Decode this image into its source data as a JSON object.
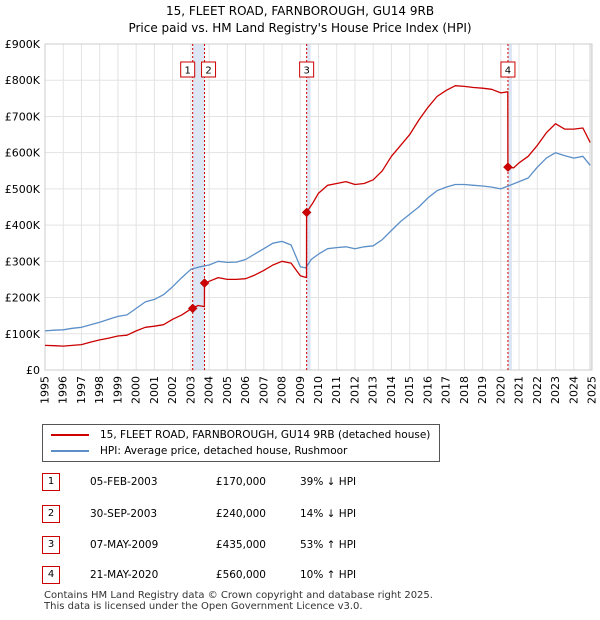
{
  "title_line1": "15, FLEET ROAD, FARNBOROUGH, GU14 9RB",
  "title_line2": "Price paid vs. HM Land Registry's House Price Index (HPI)",
  "colors": {
    "price": "#cc0000",
    "hpi": "#5b8fc8",
    "band": "#dde6f4",
    "vline": "#cc0000"
  },
  "chart_data": {
    "type": "line",
    "xlim": [
      1995,
      2025
    ],
    "ylim": [
      0,
      900000
    ],
    "y_ticks": [
      0,
      100000,
      200000,
      300000,
      400000,
      500000,
      600000,
      700000,
      800000,
      900000
    ],
    "y_tick_labels": [
      "£0",
      "£100K",
      "£200K",
      "£300K",
      "£400K",
      "£500K",
      "£600K",
      "£700K",
      "£800K",
      "£900K"
    ],
    "x_ticks": [
      1995,
      1996,
      1997,
      1998,
      1999,
      2000,
      2001,
      2002,
      2003,
      2004,
      2005,
      2006,
      2007,
      2008,
      2009,
      2010,
      2011,
      2012,
      2013,
      2014,
      2015,
      2016,
      2017,
      2018,
      2019,
      2020,
      2021,
      2022,
      2023,
      2024,
      2025
    ],
    "x_tick_labels": [
      "1995",
      "1996",
      "1997",
      "1998",
      "1999",
      "2000",
      "2001",
      "2002",
      "2003",
      "2004",
      "2005",
      "2006",
      "2007",
      "2008",
      "2009",
      "2010",
      "2011",
      "2012",
      "2013",
      "2014",
      "2015",
      "2016",
      "2017",
      "2018",
      "2019",
      "2020",
      "2021",
      "2022",
      "2023",
      "2024",
      "2025"
    ],
    "series": [
      {
        "name": "15, FLEET ROAD, FARNBOROUGH, GU14 9RB (detached house)",
        "points": [
          [
            1995.0,
            68000
          ],
          [
            1995.5,
            67000
          ],
          [
            1996.0,
            66000
          ],
          [
            1996.5,
            68000
          ],
          [
            1997.0,
            70000
          ],
          [
            1997.5,
            77000
          ],
          [
            1998.0,
            83000
          ],
          [
            1998.5,
            88000
          ],
          [
            1999.0,
            94000
          ],
          [
            1999.5,
            96000
          ],
          [
            2000.0,
            108000
          ],
          [
            2000.5,
            118000
          ],
          [
            2001.0,
            121000
          ],
          [
            2001.5,
            125000
          ],
          [
            2002.0,
            140000
          ],
          [
            2002.5,
            152000
          ],
          [
            2003.05,
            170000
          ],
          [
            2003.4,
            178000
          ],
          [
            2003.74,
            175000
          ],
          [
            2003.75,
            240000
          ],
          [
            2004.0,
            245000
          ],
          [
            2004.5,
            255000
          ],
          [
            2005.0,
            250000
          ],
          [
            2005.5,
            250000
          ],
          [
            2006.0,
            252000
          ],
          [
            2006.5,
            262000
          ],
          [
            2007.0,
            275000
          ],
          [
            2007.5,
            290000
          ],
          [
            2008.0,
            300000
          ],
          [
            2008.5,
            295000
          ],
          [
            2009.0,
            260000
          ],
          [
            2009.34,
            255000
          ],
          [
            2009.35,
            435000
          ],
          [
            2009.7,
            462000
          ],
          [
            2010.0,
            488000
          ],
          [
            2010.5,
            510000
          ],
          [
            2011.0,
            515000
          ],
          [
            2011.5,
            520000
          ],
          [
            2012.0,
            512000
          ],
          [
            2012.5,
            515000
          ],
          [
            2013.0,
            525000
          ],
          [
            2013.5,
            550000
          ],
          [
            2014.0,
            590000
          ],
          [
            2014.5,
            620000
          ],
          [
            2015.0,
            650000
          ],
          [
            2015.5,
            690000
          ],
          [
            2016.0,
            725000
          ],
          [
            2016.5,
            755000
          ],
          [
            2017.0,
            772000
          ],
          [
            2017.5,
            785000
          ],
          [
            2018.0,
            783000
          ],
          [
            2018.5,
            780000
          ],
          [
            2019.0,
            778000
          ],
          [
            2019.5,
            775000
          ],
          [
            2020.0,
            765000
          ],
          [
            2020.38,
            768000
          ],
          [
            2020.39,
            560000
          ],
          [
            2020.7,
            558000
          ],
          [
            2021.0,
            572000
          ],
          [
            2021.5,
            590000
          ],
          [
            2022.0,
            620000
          ],
          [
            2022.5,
            655000
          ],
          [
            2023.0,
            680000
          ],
          [
            2023.5,
            665000
          ],
          [
            2024.0,
            665000
          ],
          [
            2024.5,
            668000
          ],
          [
            2024.9,
            628000
          ]
        ]
      },
      {
        "name": "HPI: Average price, detached house, Rushmoor",
        "points": [
          [
            1995.0,
            108000
          ],
          [
            1995.5,
            110000
          ],
          [
            1996.0,
            111000
          ],
          [
            1996.5,
            115000
          ],
          [
            1997.0,
            118000
          ],
          [
            1997.5,
            125000
          ],
          [
            1998.0,
            132000
          ],
          [
            1998.5,
            140000
          ],
          [
            1999.0,
            148000
          ],
          [
            1999.5,
            152000
          ],
          [
            2000.0,
            170000
          ],
          [
            2000.5,
            188000
          ],
          [
            2001.0,
            195000
          ],
          [
            2001.5,
            208000
          ],
          [
            2002.0,
            230000
          ],
          [
            2002.5,
            255000
          ],
          [
            2003.0,
            278000
          ],
          [
            2003.5,
            285000
          ],
          [
            2004.0,
            290000
          ],
          [
            2004.5,
            300000
          ],
          [
            2005.0,
            297000
          ],
          [
            2005.5,
            298000
          ],
          [
            2006.0,
            305000
          ],
          [
            2006.5,
            320000
          ],
          [
            2007.0,
            335000
          ],
          [
            2007.5,
            350000
          ],
          [
            2008.0,
            355000
          ],
          [
            2008.5,
            345000
          ],
          [
            2009.0,
            285000
          ],
          [
            2009.3,
            282000
          ],
          [
            2009.6,
            305000
          ],
          [
            2010.0,
            320000
          ],
          [
            2010.5,
            335000
          ],
          [
            2011.0,
            338000
          ],
          [
            2011.5,
            340000
          ],
          [
            2012.0,
            335000
          ],
          [
            2012.5,
            340000
          ],
          [
            2013.0,
            343000
          ],
          [
            2013.5,
            360000
          ],
          [
            2014.0,
            385000
          ],
          [
            2014.5,
            410000
          ],
          [
            2015.0,
            430000
          ],
          [
            2015.5,
            450000
          ],
          [
            2016.0,
            475000
          ],
          [
            2016.5,
            495000
          ],
          [
            2017.0,
            505000
          ],
          [
            2017.5,
            512000
          ],
          [
            2018.0,
            512000
          ],
          [
            2018.5,
            510000
          ],
          [
            2019.0,
            508000
          ],
          [
            2019.5,
            505000
          ],
          [
            2020.0,
            500000
          ],
          [
            2020.4,
            508000
          ],
          [
            2021.0,
            520000
          ],
          [
            2021.5,
            530000
          ],
          [
            2022.0,
            560000
          ],
          [
            2022.5,
            585000
          ],
          [
            2023.0,
            600000
          ],
          [
            2023.5,
            592000
          ],
          [
            2024.0,
            585000
          ],
          [
            2024.5,
            590000
          ],
          [
            2024.9,
            565000
          ]
        ]
      }
    ],
    "events": [
      {
        "label": "1",
        "x": 2003.1,
        "y": 170000
      },
      {
        "label": "2",
        "x": 2003.75,
        "y": 240000
      },
      {
        "label": "3",
        "x": 2009.35,
        "y": 435000
      },
      {
        "label": "4",
        "x": 2020.39,
        "y": 560000
      }
    ]
  },
  "legend": {
    "price_label": "15, FLEET ROAD, FARNBOROUGH, GU14 9RB (detached house)",
    "hpi_label": "HPI: Average price, detached house, Rushmoor"
  },
  "events_table": [
    {
      "num": "1",
      "date": "05-FEB-2003",
      "price": "£170,000",
      "hpi": "39% ↓ HPI"
    },
    {
      "num": "2",
      "date": "30-SEP-2003",
      "price": "£240,000",
      "hpi": "14% ↓ HPI"
    },
    {
      "num": "3",
      "date": "07-MAY-2009",
      "price": "£435,000",
      "hpi": "53% ↑ HPI"
    },
    {
      "num": "4",
      "date": "21-MAY-2020",
      "price": "£560,000",
      "hpi": "10% ↑ HPI"
    }
  ],
  "footer_line1": "Contains HM Land Registry data © Crown copyright and database right 2025.",
  "footer_line2": "This data is licensed under the Open Government Licence v3.0."
}
